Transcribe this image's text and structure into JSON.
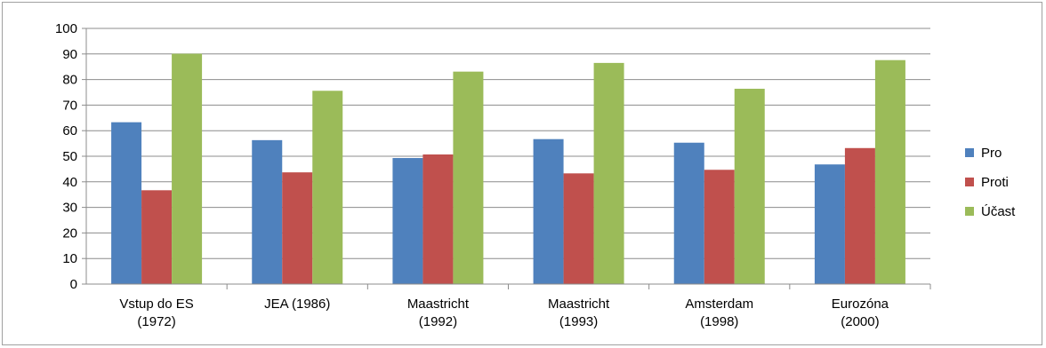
{
  "chart_data": {
    "type": "bar",
    "title": "",
    "xlabel": "",
    "ylabel": "",
    "ylim": [
      0,
      100
    ],
    "yticks": [
      0,
      10,
      20,
      30,
      40,
      50,
      60,
      70,
      80,
      90,
      100
    ],
    "grid": true,
    "legend_position": "right",
    "categories": [
      [
        "Vstup do ES",
        "(1972)"
      ],
      [
        "JEA (1986)"
      ],
      [
        "Maastricht",
        "(1992)"
      ],
      [
        "Maastricht",
        "(1993)"
      ],
      [
        "Amsterdam",
        "(1998)"
      ],
      [
        "Eurozóna",
        "(2000)"
      ]
    ],
    "series": [
      {
        "name": "Pro",
        "color": "#4f81bd",
        "values": [
          63.3,
          56.3,
          49.3,
          56.7,
          55.3,
          46.8
        ]
      },
      {
        "name": "Proti",
        "color": "#c0504d",
        "values": [
          36.7,
          43.7,
          50.7,
          43.3,
          44.7,
          53.2
        ]
      },
      {
        "name": "Účast",
        "color": "#9bbb59",
        "values": [
          90.1,
          75.6,
          83.1,
          86.5,
          76.4,
          87.6
        ]
      }
    ]
  }
}
